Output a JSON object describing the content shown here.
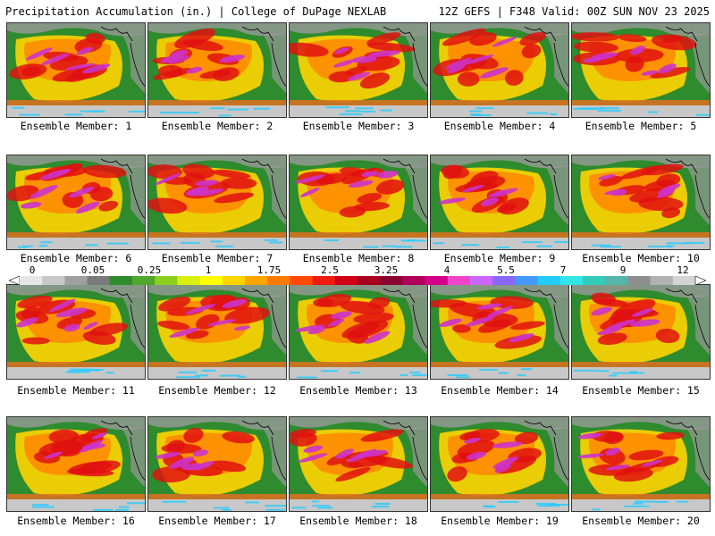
{
  "header": {
    "left": "Precipitation Accumulation (in.) | College of DuPage NEXLAB",
    "right": "12Z GEFS | F348 Valid: 00Z SUN NOV 23 2025"
  },
  "members": [
    {
      "label": "Ensemble Member: 1"
    },
    {
      "label": "Ensemble Member: 2"
    },
    {
      "label": "Ensemble Member: 3"
    },
    {
      "label": "Ensemble Member: 4"
    },
    {
      "label": "Ensemble Member: 5"
    },
    {
      "label": "Ensemble Member: 6"
    },
    {
      "label": "Ensemble Member: 7"
    },
    {
      "label": "Ensemble Member: 8"
    },
    {
      "label": "Ensemble Member: 9"
    },
    {
      "label": "Ensemble Member: 10"
    },
    {
      "label": "Ensemble Member: 11"
    },
    {
      "label": "Ensemble Member: 12"
    },
    {
      "label": "Ensemble Member: 13"
    },
    {
      "label": "Ensemble Member: 14"
    },
    {
      "label": "Ensemble Member: 15"
    },
    {
      "label": "Ensemble Member: 16"
    },
    {
      "label": "Ensemble Member: 17"
    },
    {
      "label": "Ensemble Member: 18"
    },
    {
      "label": "Ensemble Member: 19"
    },
    {
      "label": "Ensemble Member: 20"
    }
  ],
  "colorbar": {
    "labels": [
      "0",
      "0.05",
      "0.25",
      "1",
      "1.75",
      "2.5",
      "3.25",
      "4",
      "5.5",
      "7",
      "9",
      "12"
    ],
    "colors": [
      "#e6e6e6",
      "#c8c8c8",
      "#a0a0a0",
      "#7a7a7a",
      "#2e8b2e",
      "#4fa82a",
      "#8ccf20",
      "#d8ef10",
      "#ffff00",
      "#ffd400",
      "#ffa500",
      "#ff7a00",
      "#ff4a00",
      "#ee1c10",
      "#d00018",
      "#a8001e",
      "#8a0030",
      "#b0005a",
      "#d4008a",
      "#ee44cc",
      "#cc66ff",
      "#8866ff",
      "#4499ff",
      "#22ccff",
      "#33e6e6",
      "#33ccbb",
      "#55b5a8",
      "#8e8e8e",
      "#b2b2b2",
      "#d4d4d4"
    ]
  },
  "palette": {
    "ocean_base": "#2e8b2e",
    "land_gray": "#9a9a9a",
    "moderate": "#ffd400",
    "heavy_red": "#e01010",
    "extreme_purple": "#cc33cc",
    "tropics_gray": "#c8c8c8"
  }
}
